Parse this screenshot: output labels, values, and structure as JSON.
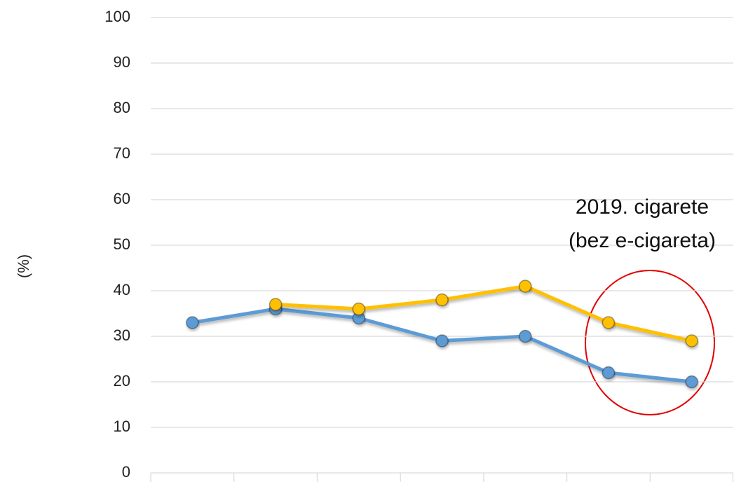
{
  "chart_data": {
    "type": "line",
    "y_label": "(%)",
    "annotation": [
      "2019. cigarete",
      "(bez e-cigareta)"
    ],
    "categories": [
      null,
      null,
      null,
      null,
      null,
      null,
      null
    ],
    "series": [
      {
        "color": "#5b9bd5",
        "values": [
          33,
          36,
          34,
          29,
          30,
          22,
          20
        ]
      },
      {
        "color": "#ffc000",
        "values": [
          null,
          37,
          36,
          38,
          41,
          33,
          29
        ]
      }
    ],
    "ylim": [
      0,
      100
    ],
    "yticks": [
      0,
      10,
      20,
      30,
      40,
      50,
      60,
      70,
      80,
      90,
      100
    ],
    "grid": true
  }
}
